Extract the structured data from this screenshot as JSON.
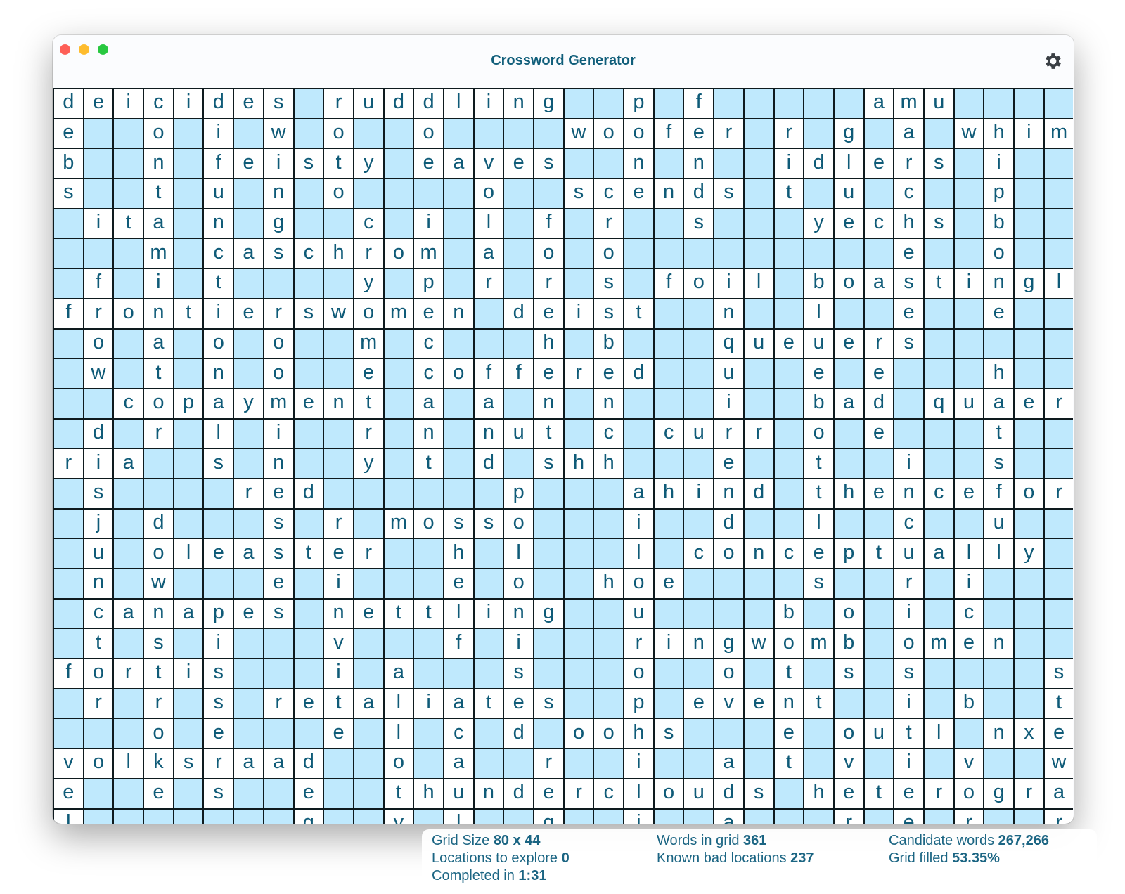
{
  "window": {
    "title": "Crossword Generator",
    "settings_icon": "gear-icon"
  },
  "colors": {
    "empty_cell": "#bfe9fd",
    "filled_cell": "#ffffff",
    "letter": "#0f5b78",
    "grid_line": "#0e1a1e"
  },
  "grid": {
    "rows": [
      "deicides.ruddling..p.f.....amu....",
      "e..o.i.w.o..o....woofer.r.g.a.whim",
      "b..n.feisty.eaves..n.n..idlers.i..",
      "s..t.u.n.o....o..scends.t.u.c..p..",
      ".ita.n.g..c.i.l.f.r..s...yechs.b..",
      "...m.caschrom.a.o.o.........e..o..",
      ".f.i.t....y.p.r.r.s.foil.boastingl",
      "frontierswomen.deist..n..l..e..e..",
      ".o.a.o.o..m.c...h.b...queuers.....",
      ".w.t.n.o..e.coffered..u..e.e...h..",
      "..copayment.a.a.n.n...i..bad.quaer",
      ".d.r.l.i..r.n.nut.c.curr.o.e...t..",
      "ria..s.n..y.t.d.shh...e..t..i..s..",
      ".s....red......p...ahind.thencefor",
      ".j.d...s.r.mosso...i..d..l..c..u..",
      ".u.oleaster..h.l...l.conceptually.",
      ".n.w...e.i...e.o..hoe....s..r.i...",
      ".canapes.nettling..u....b.o.i.c...",
      ".t.s.i...v...f.i...ringwomb.omen..",
      "fortis...i.a...s...o..o.t.s.s....s",
      ".r.r.s.retaliates..p.event..i.b..t",
      "...o.e...e.l.c.d.oohs...e.outl.nxe",
      "volksraad..o.a..r..i..a.t.v.i.v..w",
      "e..e.s..e..thunderclouds.heterogra",
      "l.......g..y.l..g..i..a...r.e.r..r"
    ]
  },
  "stats": {
    "grid_size_label": "Grid Size",
    "grid_size_value": "80 x 44",
    "words_label": "Words in grid",
    "words_value": "361",
    "candidates_label": "Candidate words",
    "candidates_value": "267,266",
    "locations_label": "Locations to explore",
    "locations_value": "0",
    "bad_label": "Known bad locations",
    "bad_value": "237",
    "filled_label": "Grid filled",
    "filled_value": "53.35%",
    "completed_label": "Completed in",
    "completed_value": "1:31"
  }
}
